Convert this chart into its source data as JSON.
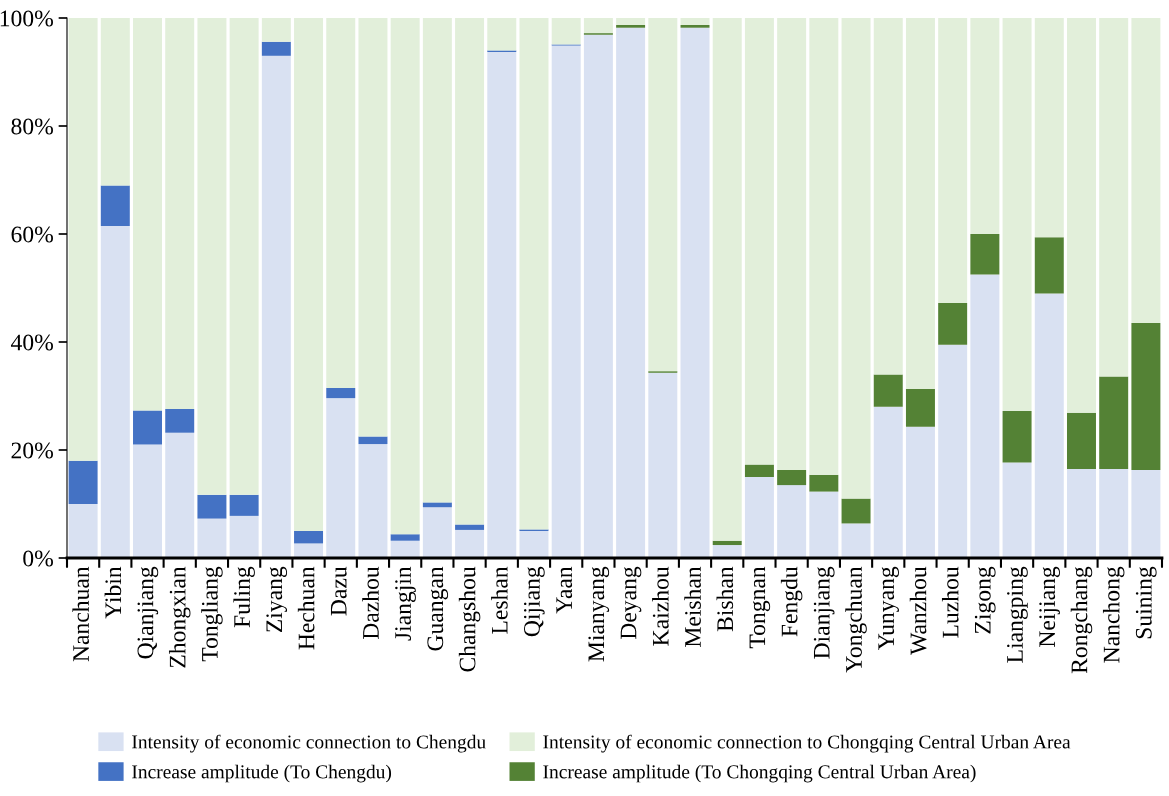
{
  "chart_data": {
    "type": "bar",
    "stacked": true,
    "categories": [
      "Nanchuan",
      "Yibin",
      "Qianjiang",
      "Zhongxian",
      "Tongliang",
      "Fuling",
      "Ziyang",
      "Hechuan",
      "Dazu",
      "Dazhou",
      "Jiangjin",
      "Guangan",
      "Changshou",
      "Leshan",
      "Qijiang",
      "Yaan",
      "Mianyang",
      "Deyang",
      "Kaizhou",
      "Meishan",
      "Bishan",
      "Tongnan",
      "Fengdu",
      "Dianjiang",
      "Yongchuan",
      "Yunyang",
      "Wanzhou",
      "Luzhou",
      "Zigong",
      "Liangping",
      "Neijiang",
      "Rongchang",
      "Nanchong",
      "Suining"
    ],
    "series": [
      {
        "name": "Intensity of economic connection to Chengdu",
        "color": "#d9e1f2",
        "values": [
          10,
          61.5,
          21,
          23.2,
          7.3,
          7.8,
          93,
          2.7,
          29.6,
          21.1,
          3.2,
          9.4,
          5.2,
          93.7,
          5.0,
          94.9,
          96.9,
          98.2,
          34.3,
          98.2,
          2.4,
          15,
          13.5,
          12.3,
          6.4,
          28,
          24.3,
          39.5,
          52.5,
          17.7,
          49,
          16.5,
          16.5,
          16.3
        ]
      },
      {
        "name": "Increase amplitude (To Chengdu)",
        "color": "#4472c4",
        "values": [
          8,
          7.5,
          6.3,
          4.4,
          4.4,
          3.9,
          2.6,
          2.3,
          1.9,
          1.4,
          1.2,
          0.9,
          1.0,
          0.3,
          0.3,
          0.2,
          0,
          0,
          0,
          0,
          0,
          0,
          0,
          0,
          0,
          0,
          0,
          0,
          0,
          0,
          0,
          0,
          0,
          0
        ]
      },
      {
        "name": "Increase amplitude (To Chongqing Central Urban Area)",
        "color": "#548235",
        "values": [
          0,
          0,
          0,
          0,
          0,
          0,
          0,
          0,
          0,
          0,
          0,
          0,
          0,
          0,
          0,
          0,
          0.3,
          0.5,
          0.3,
          0.5,
          0.8,
          2.3,
          2.8,
          3.1,
          4.6,
          6,
          7,
          7.7,
          7.5,
          9.5,
          10.4,
          10.4,
          17.1,
          27.2
        ]
      },
      {
        "name": "Intensity of economic connection to Chongqing Central Urban Area",
        "color": "#e2efda",
        "values": [
          82,
          31,
          72.7,
          72.4,
          88.3,
          88.3,
          4.4,
          95,
          68.5,
          77.5,
          95.6,
          89.7,
          93.8,
          6,
          94.7,
          4.9,
          2.8,
          1.3,
          65.4,
          1.3,
          96.8,
          82.7,
          83.7,
          84.6,
          89,
          66,
          68.7,
          52.8,
          40,
          72.8,
          40.6,
          73.1,
          66.4,
          56.5
        ]
      }
    ],
    "ylim": [
      0,
      100
    ],
    "yticks": [
      {
        "value": 0,
        "label": "0%"
      },
      {
        "value": 20,
        "label": "20%"
      },
      {
        "value": 40,
        "label": "40%"
      },
      {
        "value": 60,
        "label": "60%"
      },
      {
        "value": 80,
        "label": "80%"
      },
      {
        "value": 100,
        "label": "100%"
      }
    ],
    "grid": false,
    "legend": "bottom"
  }
}
